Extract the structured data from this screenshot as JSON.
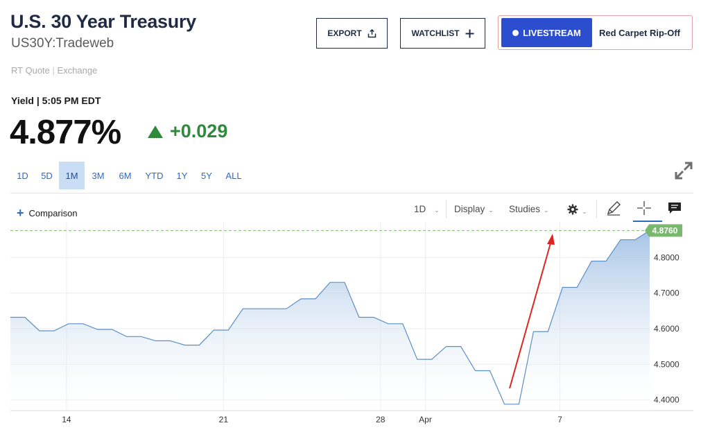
{
  "header": {
    "title": "U.S. 30 Year Treasury",
    "symbol": "US30Y:Tradeweb",
    "quote_type": "RT Quote",
    "quote_sep": "|",
    "quote_exchange": "Exchange"
  },
  "actions": {
    "export_label": "EXPORT",
    "watchlist_label": "WATCHLIST",
    "livestream_label": "LIVESTREAM",
    "livestream_show": "Red Carpet Rip-Off"
  },
  "quote": {
    "yield_label": "Yield | 5:05 PM EDT",
    "price": "4.877%",
    "change": "+0.029",
    "direction": "up"
  },
  "ranges": [
    "1D",
    "5D",
    "1M",
    "3M",
    "6M",
    "YTD",
    "1Y",
    "5Y",
    "ALL"
  ],
  "active_range": "1M",
  "toolbar": {
    "comparison_label": "Comparison",
    "interval_label": "1D",
    "display_label": "Display",
    "studies_label": "Studies"
  },
  "colors": {
    "line": "#5b8ec7",
    "area_top": "#9cbde3",
    "area_bottom": "#ffffff",
    "positive": "#2f8a3e",
    "last_badge": "#7bb86f",
    "annotation": "#e0241f",
    "brand_blue": "#2d4dcf"
  },
  "chart_data": {
    "type": "area",
    "x_tick_labels": [
      "14",
      "21",
      "28",
      "Apr",
      "7"
    ],
    "y_tick_labels": [
      "4.4000",
      "4.5000",
      "4.6000",
      "4.7000",
      "4.8000"
    ],
    "ylim": [
      4.37,
      4.9
    ],
    "last_value_label": "4.8760",
    "last_value": 4.876,
    "grid": true,
    "series": [
      {
        "values": [
          4.632,
          4.632,
          4.594,
          4.594,
          4.614,
          4.614,
          4.598,
          4.598,
          4.578,
          4.578,
          4.566,
          4.566,
          4.554,
          4.554,
          4.596,
          4.596,
          4.656,
          4.656,
          4.656,
          4.656,
          4.684,
          4.684,
          4.73,
          4.73,
          4.632,
          4.632,
          4.614,
          4.614,
          4.514,
          4.514,
          4.55,
          4.55,
          4.482,
          4.482,
          4.388,
          4.388,
          4.592,
          4.592,
          4.716,
          4.716,
          4.79,
          4.79,
          4.85,
          4.85,
          4.876
        ]
      }
    ],
    "annotation": "arrow"
  }
}
